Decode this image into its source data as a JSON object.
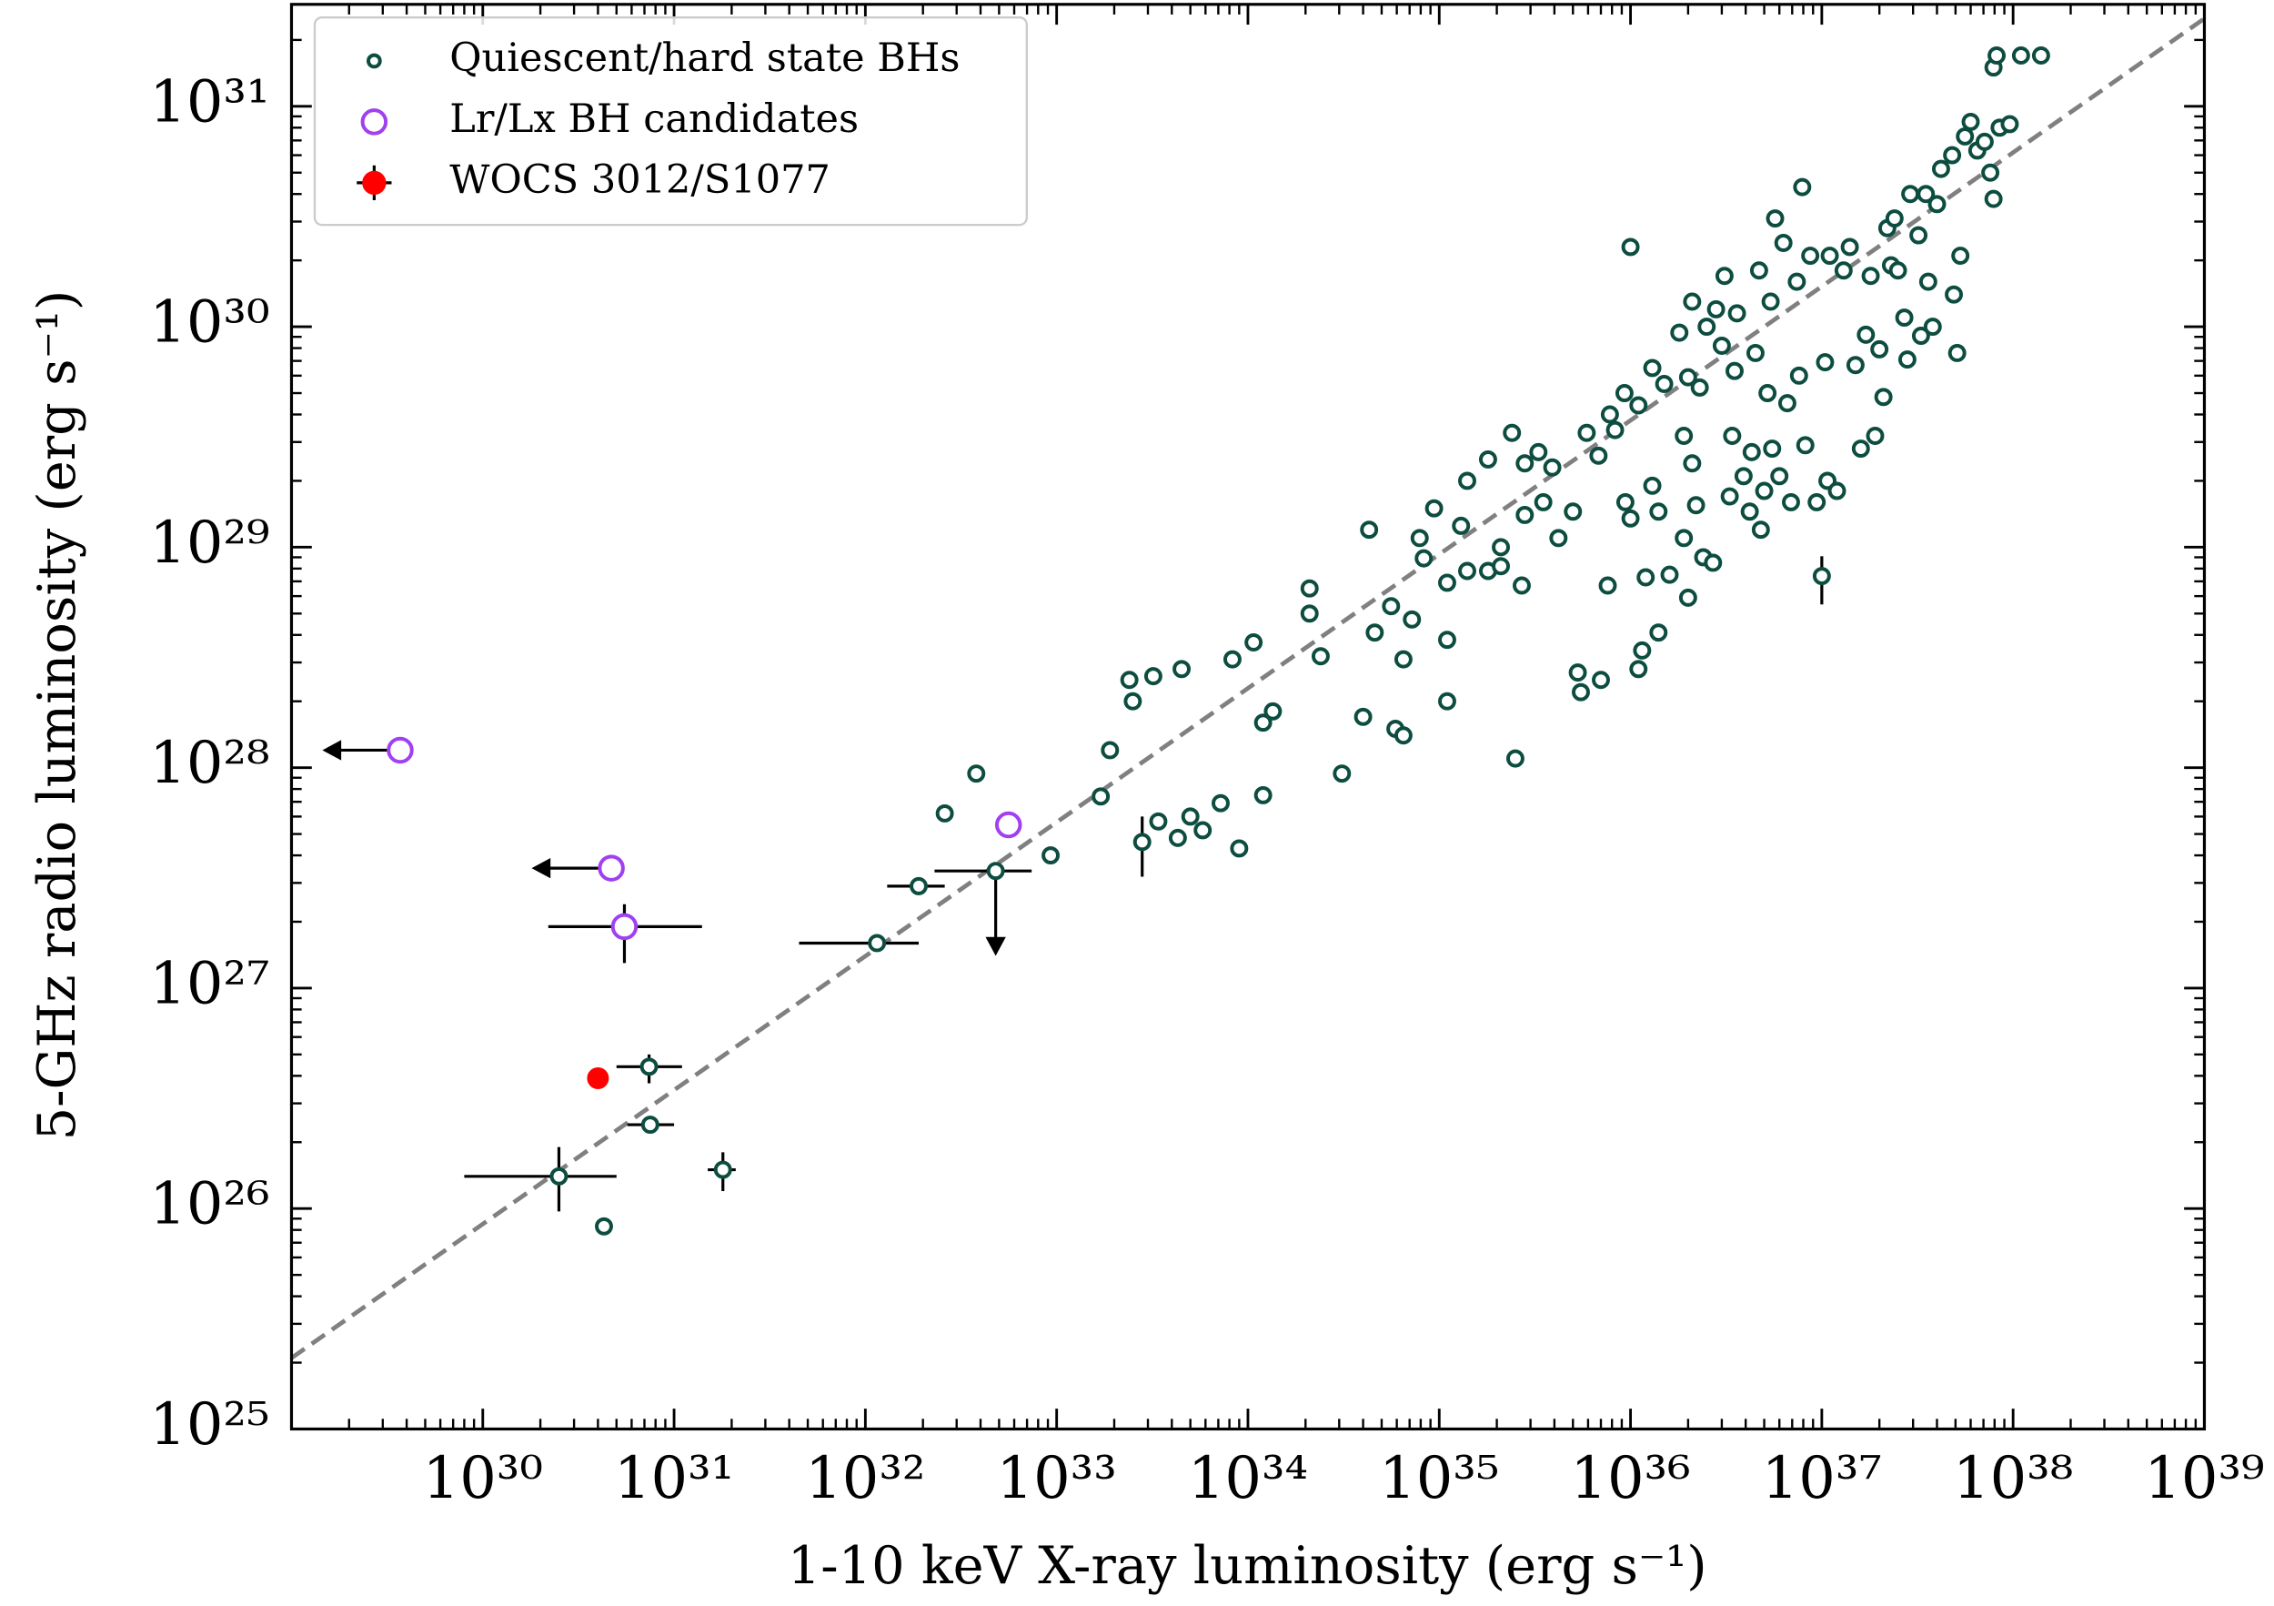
{
  "chart_data": {
    "type": "scatter",
    "xlabel": "1-10 keV X-ray luminosity (erg s⁻¹)",
    "ylabel": "5-GHz radio luminosity (erg s⁻¹)",
    "log_x": true,
    "log_y": true,
    "xlim": [
      1e+29,
      1e+39
    ],
    "ylim": [
      1e+25,
      2.9e+31
    ],
    "xticks": [
      {
        "value": 1e+30,
        "label": "10³⁰"
      },
      {
        "value": 1e+31,
        "label": "10³¹"
      },
      {
        "value": 1e+32,
        "label": "10³²"
      },
      {
        "value": 1e+33,
        "label": "10³³"
      },
      {
        "value": 1e+34,
        "label": "10³⁴"
      },
      {
        "value": 1e+35,
        "label": "10³⁵"
      },
      {
        "value": 1e+36,
        "label": "10³⁶"
      },
      {
        "value": 1e+37,
        "label": "10³⁷"
      },
      {
        "value": 1e+38,
        "label": "10³⁸"
      },
      {
        "value": 1e+39,
        "label": "10³⁹"
      }
    ],
    "yticks": [
      {
        "value": 1e+25,
        "label": "10²⁵"
      },
      {
        "value": 1e+26,
        "label": "10²⁶"
      },
      {
        "value": 1e+27,
        "label": "10²⁷"
      },
      {
        "value": 1e+28,
        "label": "10²⁸"
      },
      {
        "value": 1e+29,
        "label": "10²⁹"
      },
      {
        "value": 1e+30,
        "label": "10³⁰"
      },
      {
        "value": 1e+31,
        "label": "10³¹"
      }
    ],
    "legend": "upper left",
    "fit_line": {
      "x": [
        1e+29,
        1e+39
      ],
      "values": [
        2.1e+25,
        2.5e+31
      ],
      "color": "#808080",
      "style": "dashed"
    },
    "series": [
      {
        "name": "Quiescent/hard state BHs",
        "color": "#0d4d40",
        "marker": "open-circle",
        "size": 5,
        "x": [
          2.5e+30,
          4.3e+30,
          7.4e+30,
          7.5e+30,
          1.8e+31,
          1.15e+32,
          1.9e+32,
          4.8e+32,
          2.6e+32,
          3.8e+32,
          9.3e+32,
          1.7e+33,
          1.9e+33,
          2.4e+33,
          2.5e+33,
          3.2e+33,
          2.8e+33,
          3.4e+33,
          4.3e+33,
          4.5e+33,
          5e+33,
          5.8e+33,
          7.2e+33,
          9e+33,
          8.3e+33,
          1.07e+34,
          1.2e+34,
          1.35e+34,
          1.2e+34,
          2.1e+34,
          2.1e+34,
          2.4e+34,
          3.1e+34,
          4e+34,
          4.3e+34,
          4.6e+34,
          5.6e+34,
          5.9e+34,
          6.5e+34,
          6.5e+34,
          7.2e+34,
          7.9e+34,
          8.3e+34,
          9.4e+34,
          1.1e+35,
          1.1e+35,
          1.1e+35,
          1.3e+35,
          1.4e+35,
          1.4e+35,
          1.8e+35,
          1.8e+35,
          2.1e+35,
          2.1e+35,
          2.4e+35,
          2.5e+35,
          2.7e+35,
          2.8e+35,
          2.8e+35,
          3.3e+35,
          3.5e+35,
          3.9e+35,
          4.2e+35,
          5e+35,
          5.3e+35,
          5.5e+35,
          5.9e+35,
          6.8e+35,
          7e+35,
          7.6e+35,
          7.8e+35,
          8.3e+35,
          9.3e+35,
          9.4e+35,
          1e+36,
          1e+36,
          1.1e+36,
          1.1e+36,
          1.15e+36,
          1.2e+36,
          1.3e+36,
          1.3e+36,
          1.4e+36,
          1.4e+36,
          1.5e+36,
          1.6e+36,
          1.8e+36,
          2e+36,
          1.9e+36,
          1.9e+36,
          2e+36,
          2.1e+36,
          2.1e+36,
          2.2e+36,
          2.3e+36,
          2.4e+36,
          2.5e+36,
          2.7e+36,
          2.8e+36,
          3e+36,
          3.1e+36,
          3.3e+36,
          3.4e+36,
          3.5e+36,
          3.6e+36,
          3.9e+36,
          4.2e+36,
          4.3e+36,
          4.5e+36,
          4.7e+36,
          4.8e+36,
          5e+36,
          5.2e+36,
          5.4e+36,
          5.5e+36,
          5.7e+36,
          6e+36,
          6.3e+36,
          6.6e+36,
          6.9e+36,
          7.4e+36,
          7.6e+36,
          7.9e+36,
          8.2e+36,
          8.7e+36,
          9.4e+36,
          1e+37,
          1.04e+37,
          1.07e+37,
          1.1e+37,
          1.2e+37,
          1.3e+37,
          1.4e+37,
          1.5e+37,
          1.6e+37,
          1.7e+37,
          1.8e+37,
          1.9e+37,
          2e+37,
          2.1e+37,
          2.2e+37,
          2.3e+37,
          2.4e+37,
          2.5e+37,
          2.7e+37,
          2.8e+37,
          2.9e+37,
          3.2e+37,
          3.3e+37,
          3.5e+37,
          3.6e+37,
          3.8e+37,
          4e+37,
          4.2e+37,
          4.8e+37,
          4.9e+37,
          5.1e+37,
          5.3e+37,
          5.6e+37,
          6e+37,
          6.5e+37,
          7.1e+37,
          7.6e+37,
          7.9e+37,
          7.9e+37,
          8.2e+37,
          8.5e+37,
          9.6e+37,
          1.1e+38,
          1.4e+38
        ],
        "values": [
          1.4e+26,
          8.3e+25,
          4.4e+26,
          2.4e+26,
          1.5e+26,
          1.6e+27,
          2.9e+27,
          3.4e+27,
          6.2e+27,
          9.4e+27,
          4e+27,
          7.4e+27,
          1.2e+28,
          2.5e+28,
          2e+28,
          2.6e+28,
          4.6e+27,
          5.7e+27,
          4.8e+27,
          2.8e+28,
          6e+27,
          5.2e+27,
          6.9e+27,
          4.3e+27,
          3.1e+28,
          3.7e+28,
          1.6e+28,
          1.8e+28,
          7.5e+27,
          6.5e+28,
          5e+28,
          3.2e+28,
          9.4e+27,
          1.7e+28,
          1.2e+29,
          4.1e+28,
          5.4e+28,
          1.5e+28,
          1.4e+28,
          3.1e+28,
          4.7e+28,
          1.1e+29,
          8.9e+28,
          1.5e+29,
          3.8e+28,
          2e+28,
          6.9e+28,
          1.25e+29,
          2e+29,
          7.8e+28,
          7.8e+28,
          2.5e+29,
          8.2e+28,
          1e+29,
          3.3e+29,
          1.1e+28,
          6.7e+28,
          1.4e+29,
          2.4e+29,
          2.7e+29,
          1.6e+29,
          2.3e+29,
          1.1e+29,
          1.45e+29,
          2.7e+28,
          2.2e+28,
          3.3e+29,
          2.6e+29,
          2.5e+28,
          6.7e+28,
          4e+29,
          3.4e+29,
          5e+29,
          1.6e+29,
          2.3e+30,
          1.35e+29,
          2.8e+28,
          4.4e+29,
          3.4e+28,
          7.3e+28,
          6.5e+29,
          1.9e+29,
          1.45e+29,
          4.1e+28,
          5.5e+29,
          7.5e+28,
          9.4e+29,
          5.9e+29,
          1.1e+29,
          3.2e+29,
          5.9e+28,
          1.3e+30,
          2.4e+29,
          1.55e+29,
          5.3e+29,
          9e+28,
          1e+30,
          8.5e+28,
          1.2e+30,
          8.2e+29,
          1.7e+30,
          1.7e+29,
          3.2e+29,
          6.3e+29,
          1.15e+30,
          2.1e+29,
          1.45e+29,
          2.7e+29,
          7.6e+29,
          1.8e+30,
          1.2e+29,
          1.8e+29,
          5e+29,
          1.3e+30,
          2.8e+29,
          3.1e+30,
          2.1e+29,
          2.4e+30,
          4.5e+29,
          1.6e+29,
          1.6e+30,
          6e+29,
          4.3e+30,
          2.9e+29,
          2.1e+30,
          1.6e+29,
          7.4e+28,
          6.9e+29,
          2e+29,
          2.1e+30,
          1.8e+29,
          1.8e+30,
          2.3e+30,
          6.7e+29,
          2.8e+29,
          9.2e+29,
          1.7e+30,
          3.2e+29,
          7.9e+29,
          4.8e+29,
          2.8e+30,
          1.9e+30,
          3.1e+30,
          1.8e+30,
          1.1e+30,
          7.1e+29,
          4e+30,
          2.6e+30,
          9.1e+29,
          4e+30,
          1.6e+30,
          1e+30,
          3.6e+30,
          5.2e+30,
          6e+30,
          1.4e+30,
          7.6e+29,
          2.1e+30,
          7.3e+30,
          8.5e+30,
          6.3e+30,
          6.9e+30,
          5e+30,
          3.8e+30,
          1.5e+31,
          1.7e+31,
          8e+30,
          8.3e+30,
          1.7e+31,
          1.7e+31
        ],
        "error_bars": [
          {
            "x": 2.5e+30,
            "y": 1.4e+26,
            "x_min": 8e+29,
            "x_max": 5e+30,
            "y_min": 9.7e+25,
            "y_max": 1.9e+26
          },
          {
            "x": 7.4e+30,
            "y": 4.4e+26,
            "x_min": 5e+30,
            "x_max": 1.1e+31,
            "y_min": 3.7e+26,
            "y_max": 5e+26
          },
          {
            "x": 7.5e+30,
            "y": 2.4e+26,
            "x_min": 5.7e+30,
            "x_max": 1e+31
          },
          {
            "x": 1.8e+31,
            "y": 1.5e+26,
            "x_min": 1.5e+31,
            "x_max": 2.1e+31,
            "y_min": 1.2e+26,
            "y_max": 1.8e+26
          },
          {
            "x": 1.15e+32,
            "y": 1.6e+27,
            "x_min": 4.5e+31,
            "x_max": 1.9e+32
          },
          {
            "x": 1.9e+32,
            "y": 2.9e+27,
            "x_min": 1.3e+32,
            "x_max": 2.6e+32
          },
          {
            "x": 4.8e+32,
            "y": 3.4e+27,
            "x_min": 2.3e+32,
            "x_max": 7.4e+32
          },
          {
            "x": 2.8e+33,
            "y": 4.6e+27,
            "y_min": 3.2e+27,
            "y_max": 6e+27
          },
          {
            "x": 1e+37,
            "y": 7.4e+28,
            "y_min": 5.5e+28,
            "y_max": 9.1e+28
          }
        ],
        "limits": [
          {
            "x": 4.8e+32,
            "y": 3.4e+27,
            "y_to": 1.4e+27
          }
        ]
      },
      {
        "name": "Lr/Lx BH candidates",
        "color": "#a040f0",
        "marker": "open-circle",
        "size": 8,
        "x": [
          3.7e+29,
          4.7e+30,
          5.5e+30,
          5.6e+32
        ],
        "values": [
          1.2e+28,
          3.5e+27,
          1.9e+27,
          5.5e+27
        ],
        "error_bars": [
          {
            "x": 5.5e+30,
            "y": 1.9e+27,
            "x_min": 2.2e+30,
            "x_max": 1.4e+31,
            "y_min": 1.3e+27,
            "y_max": 2.4e+27
          }
        ],
        "limits": [
          {
            "x": 3.7e+29,
            "y": 1.2e+28,
            "x_to": 1.45e+29
          },
          {
            "x": 4.7e+30,
            "y": 3.5e+27,
            "x_to": 1.8e+30
          }
        ]
      },
      {
        "name": "WOCS 3012/S1077",
        "color": "#ff0000",
        "marker": "filled-circle",
        "size": 7,
        "x": [
          4e+30
        ],
        "values": [
          3.9e+26
        ]
      }
    ]
  }
}
